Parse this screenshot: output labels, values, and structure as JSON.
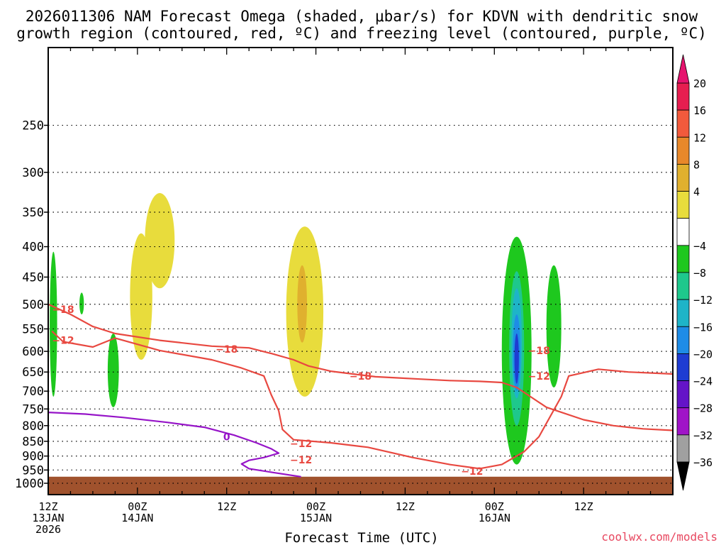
{
  "chart_data": {
    "type": "time-height-section",
    "title_line1": "2026011306 NAM Forecast Omega (shaded, μbar/s) for KDVN with dendritic snow",
    "title_line2": "growth region (contoured, red, ºC) and freezing level (contoured, purple, ºC)",
    "xlabel": "Forecast Time (UTC)",
    "watermark": "coolwx.com/models",
    "xaxis": {
      "unit": "hours since 2026-01-13 06Z",
      "range": [
        6,
        90
      ],
      "ticks": [
        {
          "hour": 6,
          "l1": "12Z",
          "l2": "13JAN",
          "l3": "2026"
        },
        {
          "hour": 18,
          "l1": "00Z",
          "l2": "14JAN",
          "l3": ""
        },
        {
          "hour": 30,
          "l1": "12Z",
          "l2": "",
          "l3": ""
        },
        {
          "hour": 42,
          "l1": "00Z",
          "l2": "15JAN",
          "l3": ""
        },
        {
          "hour": 54,
          "l1": "12Z",
          "l2": "",
          "l3": ""
        },
        {
          "hour": 66,
          "l1": "00Z",
          "l2": "16JAN",
          "l3": ""
        },
        {
          "hour": 78,
          "l1": "12Z",
          "l2": "",
          "l3": ""
        }
      ]
    },
    "yaxis": {
      "unit": "hPa",
      "range": [
        1045,
        185
      ],
      "levels": [
        "250",
        "300",
        "350",
        "400",
        "450",
        "500",
        "550",
        "600",
        "650",
        "700",
        "750",
        "800",
        "850",
        "900",
        "950",
        "1000"
      ]
    },
    "ground_pressure": 975,
    "colorbar": {
      "labels": [
        "20",
        "16",
        "12",
        "8",
        "4",
        "−4",
        "−8",
        "−12",
        "−16",
        "−20",
        "−24",
        "−28",
        "−32",
        "−36"
      ],
      "colors": [
        "#e61e50",
        "#f25a3c",
        "#e8882a",
        "#e0b02e",
        "#e8dc3c",
        "#ffffff",
        "#1ec81e",
        "#1ec88c",
        "#1eb4c8",
        "#1e8ce6",
        "#1e3cd2",
        "#6414c8",
        "#a014c8",
        "#a0a0a0"
      ],
      "top_arrow_color": "#e6146e",
      "bottom_arrow_color": "#000000"
    },
    "series": {
      "dgz_minus12": {
        "name": "-12 °C",
        "color": "#e84840",
        "points": [
          [
            6.5,
            555
          ],
          [
            8,
            578
          ],
          [
            12,
            590
          ],
          [
            15,
            570
          ],
          [
            21,
            598
          ],
          [
            28,
            620
          ],
          [
            32,
            640
          ],
          [
            35,
            660
          ],
          [
            36,
            710
          ],
          [
            37,
            755
          ],
          [
            37.5,
            812
          ],
          [
            39,
            845
          ],
          [
            44,
            855
          ],
          [
            49,
            870
          ],
          [
            55,
            905
          ],
          [
            60,
            930
          ],
          [
            64,
            945
          ],
          [
            67,
            930
          ],
          [
            70,
            885
          ],
          [
            72,
            835
          ],
          [
            75,
            715
          ],
          [
            76,
            660
          ],
          [
            80,
            643
          ],
          [
            84,
            650
          ],
          [
            90,
            655
          ]
        ],
        "labels": [
          {
            "text": "−12",
            "t": 8,
            "p": 575
          },
          {
            "text": "−12",
            "t": 40,
            "p": 857
          },
          {
            "text": "−12",
            "t": 40,
            "p": 913
          },
          {
            "text": "−12",
            "t": 63,
            "p": 955
          },
          {
            "text": "−12",
            "t": 72,
            "p": 660
          }
        ]
      },
      "dgz_minus18": {
        "name": "-18 °C",
        "color": "#e84840",
        "points": [
          [
            6,
            500
          ],
          [
            9,
            520
          ],
          [
            12,
            545
          ],
          [
            15,
            560
          ],
          [
            21,
            575
          ],
          [
            28,
            588
          ],
          [
            33,
            592
          ],
          [
            36,
            605
          ],
          [
            39,
            620
          ],
          [
            41,
            635
          ],
          [
            44,
            648
          ],
          [
            47,
            655
          ],
          [
            50,
            662
          ],
          [
            53,
            665
          ],
          [
            56,
            668
          ],
          [
            60,
            672
          ],
          [
            64,
            674
          ],
          [
            67,
            677
          ],
          [
            69,
            690
          ],
          [
            73,
            745
          ],
          [
            78,
            782
          ],
          [
            82,
            800
          ],
          [
            86,
            810
          ],
          [
            90,
            815
          ]
        ],
        "labels": [
          {
            "text": "−18",
            "t": 8,
            "p": 510
          },
          {
            "text": "−18",
            "t": 30,
            "p": 595
          },
          {
            "text": "−18",
            "t": 48,
            "p": 660
          },
          {
            "text": "−18",
            "t": 72,
            "p": 598
          }
        ]
      },
      "freezing_level": {
        "name": "0 °C",
        "color": "#9614c8",
        "points": [
          [
            6,
            760
          ],
          [
            11,
            765
          ],
          [
            16,
            775
          ],
          [
            22,
            790
          ],
          [
            27,
            805
          ],
          [
            31,
            830
          ],
          [
            34,
            855
          ],
          [
            36,
            875
          ],
          [
            37,
            890
          ],
          [
            35,
            905
          ],
          [
            33,
            915
          ],
          [
            32,
            928
          ],
          [
            33,
            945
          ],
          [
            36,
            958
          ],
          [
            40,
            975
          ]
        ],
        "labels": [
          {
            "text": "0",
            "t": 30,
            "p": 835
          }
        ]
      }
    },
    "omega_regions": [
      {
        "category": "-8 to -4",
        "color": "#1ec81e",
        "t": [
          6.2,
          7.2
        ],
        "p": [
          408,
          715
        ]
      },
      {
        "category": "-8 to -4",
        "color": "#1ec81e",
        "t": [
          10.2,
          10.8
        ],
        "p": [
          478,
          520
        ]
      },
      {
        "category": "-8 to -4",
        "color": "#1ec81e",
        "t": [
          14.0,
          15.5
        ],
        "p": [
          560,
          745
        ]
      },
      {
        "category": "4 to 8",
        "color": "#e8dc3c",
        "t": [
          19,
          23
        ],
        "p": [
          325,
          470
        ]
      },
      {
        "category": "4 to 8",
        "color": "#e8dc3c",
        "t": [
          17,
          20
        ],
        "p": [
          380,
          620
        ]
      },
      {
        "category": "4 to 8",
        "color": "#e8dc3c",
        "t": [
          38,
          43
        ],
        "p": [
          370,
          715
        ]
      },
      {
        "category": "8 to 12",
        "color": "#e0b02e",
        "t": [
          39.5,
          40.8
        ],
        "p": [
          430,
          580
        ]
      },
      {
        "category": "-8 to -4",
        "color": "#1ec81e",
        "t": [
          67,
          71
        ],
        "p": [
          385,
          930
        ]
      },
      {
        "category": "-12 to -8",
        "color": "#1ec88c",
        "t": [
          68,
          70
        ],
        "p": [
          440,
          800
        ]
      },
      {
        "category": "-16 to -12",
        "color": "#1eb4c8",
        "t": [
          68.3,
          69.7
        ],
        "p": [
          470,
          720
        ]
      },
      {
        "category": "-20 to -16",
        "color": "#1e8ce6",
        "t": [
          68.5,
          69.5
        ],
        "p": [
          520,
          700
        ]
      },
      {
        "category": "-24 to -20",
        "color": "#1e3cd2",
        "t": [
          68.7,
          69.3
        ],
        "p": [
          560,
          680
        ]
      },
      {
        "category": "-8 to -4",
        "color": "#1ec81e",
        "t": [
          73,
          75
        ],
        "p": [
          430,
          690
        ]
      }
    ]
  }
}
